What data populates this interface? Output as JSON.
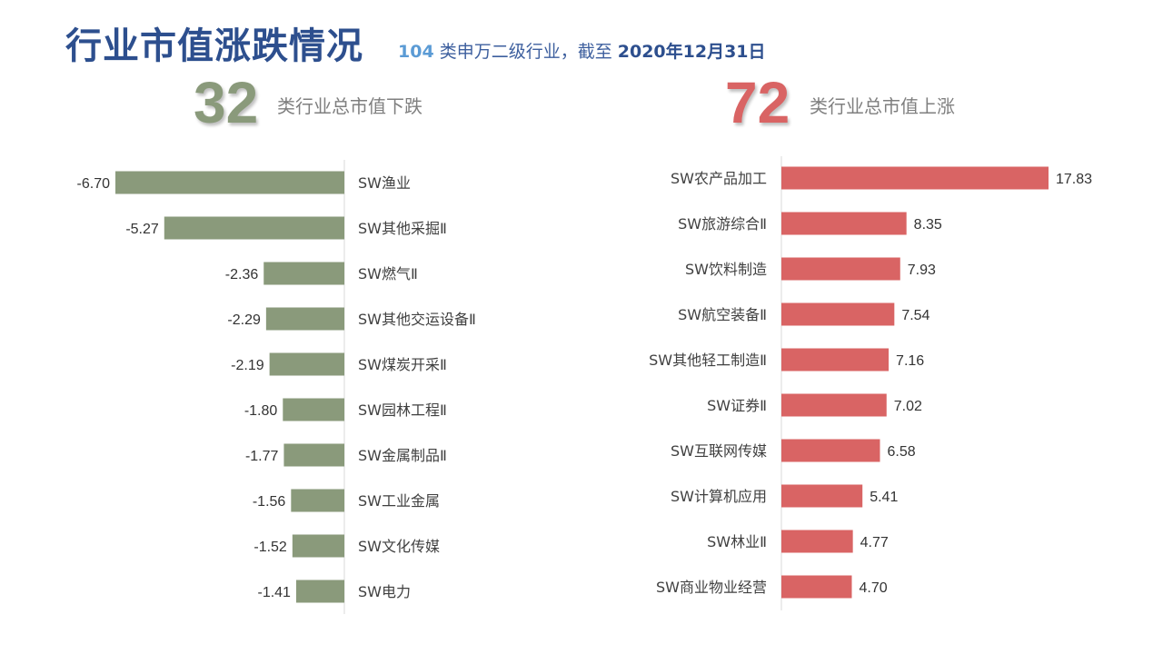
{
  "header": {
    "title": "行业市值涨跌情况",
    "subtitle_count": "104",
    "subtitle_mid": " 类申万二级行业，截至 ",
    "subtitle_date": "2020年12月31日"
  },
  "left_summary": {
    "count": "32",
    "text": "类行业总市值下跌"
  },
  "right_summary": {
    "count": "72",
    "text": "类行业总市值上涨"
  },
  "colors": {
    "down": "#8a9a7b",
    "up": "#d96464",
    "count_down": "#8a9a7b",
    "count_up": "#d96464"
  },
  "chart_data": [
    {
      "type": "bar",
      "orientation": "horizontal",
      "categories": [
        "SW渔业",
        "SW其他采掘Ⅱ",
        "SW燃气Ⅱ",
        "SW其他交运设备Ⅱ",
        "SW煤炭开采Ⅱ",
        "SW园林工程Ⅱ",
        "SW金属制品Ⅱ",
        "SW工业金属",
        "SW文化传媒",
        "SW电力"
      ],
      "values": [
        -6.7,
        -5.27,
        -2.36,
        -2.29,
        -2.19,
        -1.8,
        -1.77,
        -1.56,
        -1.52,
        -1.41
      ],
      "value_labels": [
        "-6.70",
        "-5.27",
        "-2.36",
        "-2.29",
        "-2.19",
        "-1.80",
        "-1.77",
        "-1.56",
        "-1.52",
        "-1.41"
      ],
      "grid": false,
      "legend": "none"
    },
    {
      "type": "bar",
      "orientation": "horizontal",
      "categories": [
        "SW农产品加工",
        "SW旅游综合Ⅱ",
        "SW饮料制造",
        "SW航空装备Ⅱ",
        "SW其他轻工制造Ⅱ",
        "SW证券Ⅱ",
        "SW互联网传媒",
        "SW计算机应用",
        "SW林业Ⅱ",
        "SW商业物业经营"
      ],
      "values": [
        17.83,
        8.35,
        7.93,
        7.54,
        7.16,
        7.02,
        6.58,
        5.41,
        4.77,
        4.7
      ],
      "value_labels": [
        "17.83",
        "8.35",
        "7.93",
        "7.54",
        "7.16",
        "7.02",
        "6.58",
        "5.41",
        "4.77",
        "4.70"
      ],
      "grid": false,
      "legend": "none"
    }
  ]
}
